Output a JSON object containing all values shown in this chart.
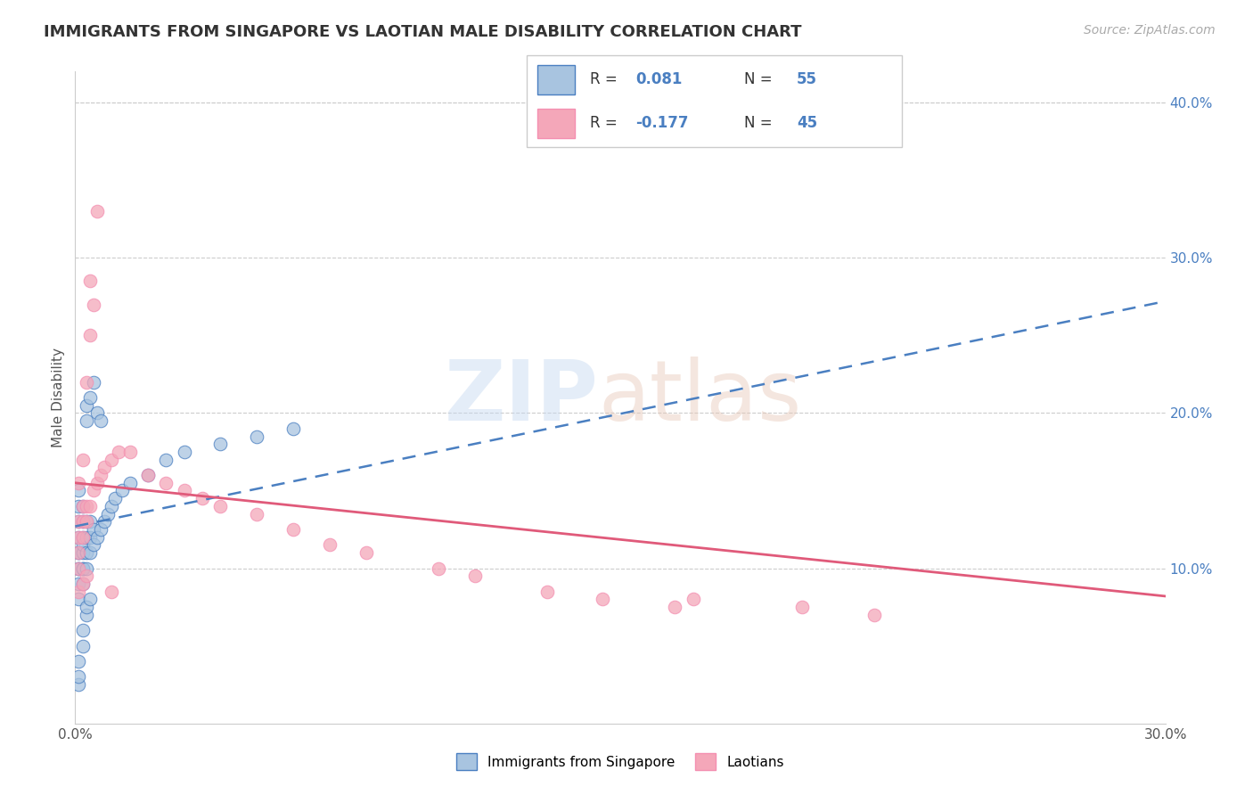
{
  "title": "IMMIGRANTS FROM SINGAPORE VS LAOTIAN MALE DISABILITY CORRELATION CHART",
  "source": "Source: ZipAtlas.com",
  "ylabel": "Male Disability",
  "xlim": [
    0.0,
    0.3
  ],
  "ylim": [
    0.0,
    0.42
  ],
  "color_blue": "#a8c4e0",
  "color_pink": "#f4a7b9",
  "color_blue_line": "#4a7fc1",
  "color_pink_line": "#e05a7a",
  "color_pink_edge": "#f48fb1",
  "legend_blue_label": "Immigrants from Singapore",
  "legend_pink_label": "Laotians",
  "grid_color": "#cccccc",
  "background_color": "#ffffff",
  "title_color": "#333333",
  "blue_scatter_x": [
    0.001,
    0.001,
    0.001,
    0.001,
    0.001,
    0.001,
    0.001,
    0.001,
    0.001,
    0.001,
    0.002,
    0.002,
    0.002,
    0.002,
    0.002,
    0.002,
    0.002,
    0.002,
    0.003,
    0.003,
    0.003,
    0.003,
    0.003,
    0.003,
    0.004,
    0.004,
    0.004,
    0.004,
    0.005,
    0.005,
    0.005,
    0.006,
    0.006,
    0.007,
    0.007,
    0.008,
    0.009,
    0.01,
    0.011,
    0.013,
    0.015,
    0.02,
    0.025,
    0.03,
    0.04,
    0.05,
    0.06,
    0.001,
    0.001,
    0.001,
    0.002,
    0.002,
    0.003,
    0.003,
    0.004
  ],
  "blue_scatter_y": [
    0.08,
    0.09,
    0.1,
    0.11,
    0.12,
    0.13,
    0.14,
    0.15,
    0.1,
    0.11,
    0.09,
    0.1,
    0.11,
    0.12,
    0.13,
    0.14,
    0.1,
    0.115,
    0.1,
    0.11,
    0.12,
    0.13,
    0.195,
    0.205,
    0.11,
    0.12,
    0.13,
    0.21,
    0.115,
    0.125,
    0.22,
    0.12,
    0.2,
    0.125,
    0.195,
    0.13,
    0.135,
    0.14,
    0.145,
    0.15,
    0.155,
    0.16,
    0.17,
    0.175,
    0.18,
    0.185,
    0.19,
    0.025,
    0.03,
    0.04,
    0.05,
    0.06,
    0.07,
    0.075,
    0.08
  ],
  "pink_scatter_x": [
    0.001,
    0.001,
    0.001,
    0.001,
    0.001,
    0.002,
    0.002,
    0.002,
    0.002,
    0.003,
    0.003,
    0.003,
    0.004,
    0.004,
    0.004,
    0.005,
    0.005,
    0.006,
    0.006,
    0.007,
    0.008,
    0.01,
    0.012,
    0.015,
    0.02,
    0.025,
    0.03,
    0.035,
    0.04,
    0.05,
    0.06,
    0.07,
    0.08,
    0.1,
    0.11,
    0.13,
    0.145,
    0.165,
    0.17,
    0.2,
    0.22,
    0.001,
    0.002,
    0.003,
    0.01
  ],
  "pink_scatter_y": [
    0.1,
    0.11,
    0.12,
    0.13,
    0.155,
    0.12,
    0.13,
    0.14,
    0.17,
    0.13,
    0.14,
    0.22,
    0.14,
    0.25,
    0.285,
    0.15,
    0.27,
    0.155,
    0.33,
    0.16,
    0.165,
    0.17,
    0.175,
    0.175,
    0.16,
    0.155,
    0.15,
    0.145,
    0.14,
    0.135,
    0.125,
    0.115,
    0.11,
    0.1,
    0.095,
    0.085,
    0.08,
    0.075,
    0.08,
    0.075,
    0.07,
    0.085,
    0.09,
    0.095,
    0.085
  ],
  "blue_line_x0": 0.0,
  "blue_line_x1": 0.3,
  "blue_line_y0": 0.127,
  "blue_line_y1": 0.272,
  "pink_line_x0": 0.0,
  "pink_line_x1": 0.3,
  "pink_line_y0": 0.155,
  "pink_line_y1": 0.082
}
